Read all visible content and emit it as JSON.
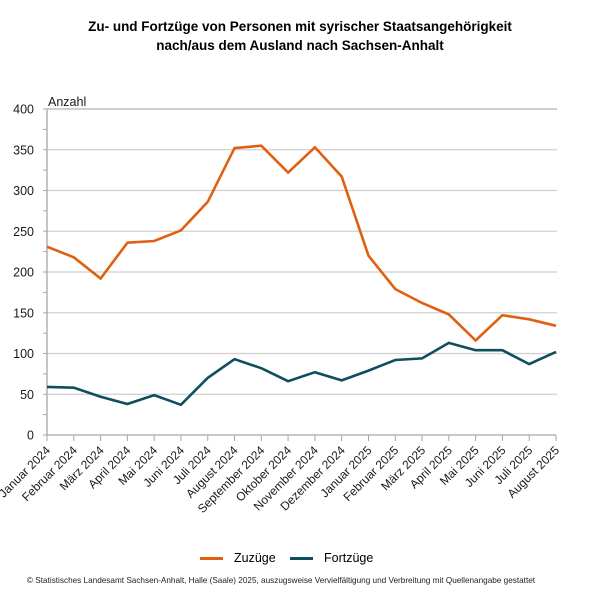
{
  "title": {
    "line1": "Zu- und Fortzüge von Personen mit syrischer Staatsangehörigkeit",
    "line2": "nach/aus dem Ausland nach Sachsen-Anhalt"
  },
  "footer": "© Statistisches Landesamt Sachsen-Anhalt, Halle (Saale) 2025, auszugsweise Vervielfältigung und Verbreitung mit Quellenangabe gestattet",
  "colors": {
    "zuzuege": "#e0600f",
    "fortzuege": "#0d4f5c",
    "grid": "#d0d0d0",
    "axis": "#a6a6a6"
  },
  "chart_data": {
    "type": "line",
    "title": "Zu- und Fortzüge von Personen mit syrischer Staatsangehörigkeit nach/aus dem Ausland nach Sachsen-Anhalt",
    "xlabel": "",
    "ylabel": "Anzahl",
    "ylim": [
      0,
      400
    ],
    "yticks": [
      0,
      50,
      100,
      150,
      200,
      250,
      300,
      350,
      400
    ],
    "grid": true,
    "legend_position": "bottom-center",
    "categories": [
      "Januar 2024",
      "Februar 2024",
      "März 2024",
      "April  2024",
      "Mai 2024",
      "Juni 2024",
      "Juli 2024",
      "August 2024",
      "September 2024",
      "Oktober 2024",
      "November 2024",
      "Dezember 2024",
      "Januar 2025",
      "Februar 2025",
      "März 2025",
      "April 2025",
      "Mai 2025",
      "Juni 2025",
      "Juli 2025",
      "August 2025"
    ],
    "series": [
      {
        "name": "Zuzüge",
        "color": "#e0600f",
        "values": [
          231,
          218,
          192,
          236,
          238,
          251,
          286,
          352,
          355,
          322,
          353,
          317,
          220,
          179,
          162,
          148,
          116,
          147,
          142,
          134
        ]
      },
      {
        "name": "Fortzüge",
        "color": "#0d4f5c",
        "values": [
          59,
          58,
          47,
          38,
          49,
          37,
          70,
          93,
          82,
          66,
          77,
          67,
          79,
          92,
          94,
          113,
          104,
          104,
          87,
          102
        ]
      }
    ]
  }
}
